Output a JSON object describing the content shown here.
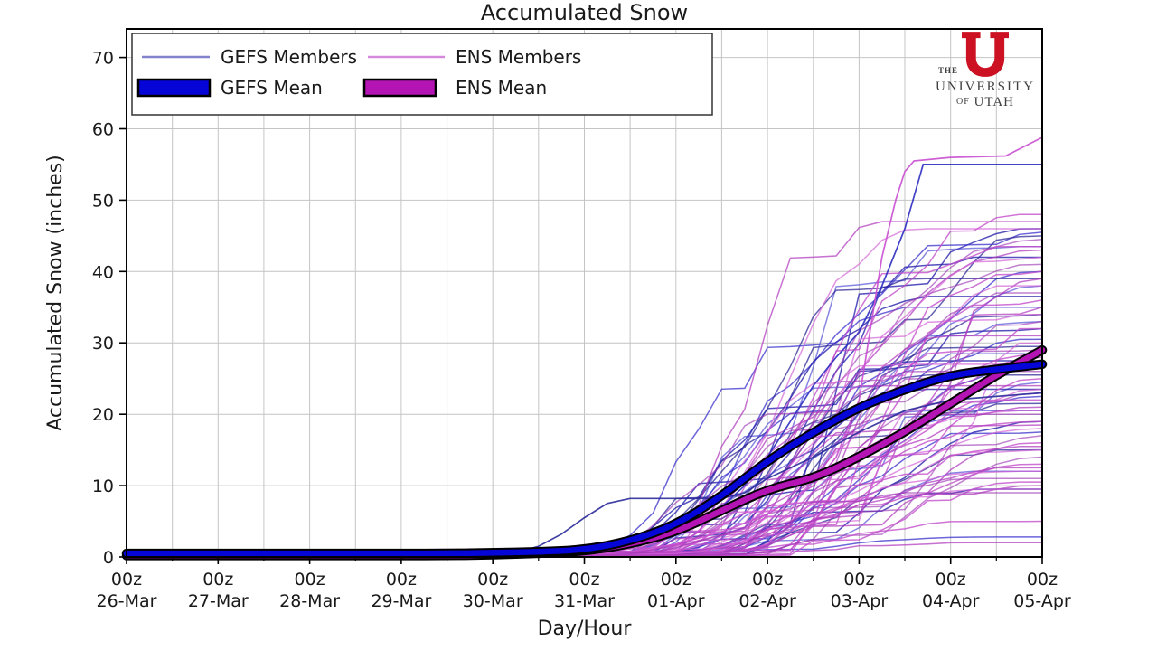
{
  "chart_data": {
    "type": "line",
    "title": "Accumulated Snow",
    "xlabel": "Day/Hour",
    "ylabel": "Accumulated Snow (inches)",
    "x_tick_hour": "00z",
    "x_tick_dates": [
      "26-Mar",
      "27-Mar",
      "28-Mar",
      "29-Mar",
      "30-Mar",
      "31-Mar",
      "01-Apr",
      "02-Apr",
      "03-Apr",
      "04-Apr",
      "05-Apr"
    ],
    "x_minor_interval_days": 0.5,
    "ylim": [
      0,
      74
    ],
    "yticks": [
      0,
      10,
      20,
      30,
      40,
      50,
      60,
      70
    ],
    "grid": true,
    "background": "#ffffff",
    "axes": {
      "spine_color": "#000000",
      "grid_color": "#c4c4c4",
      "tick_label_color": "#1a1a1a"
    },
    "legend": {
      "position": "upper left",
      "entries": [
        {
          "label": "GEFS Members",
          "type": "line",
          "color": "#8383cd"
        },
        {
          "label": "ENS Members",
          "type": "line",
          "color": "#d489dc"
        },
        {
          "label": "GEFS Mean",
          "type": "band",
          "color": "#0505d8",
          "edge": "#000000"
        },
        {
          "label": "ENS Mean",
          "type": "band",
          "color": "#b414b4",
          "edge": "#000000"
        }
      ]
    },
    "mean_step_days": 0.5,
    "series": [
      {
        "name": "GEFS Mean",
        "color": "#0505d8",
        "edge": "#000000",
        "values": [
          0.5,
          0.5,
          0.5,
          0.5,
          0.5,
          0.5,
          0.5,
          0.5,
          0.6,
          0.7,
          1.0,
          2.2,
          4.5,
          8.5,
          13.5,
          17.5,
          21.0,
          23.5,
          25.5,
          26.3,
          27.0
        ]
      },
      {
        "name": "ENS Mean",
        "color": "#b414b4",
        "edge": "#000000",
        "values": [
          0.2,
          0.2,
          0.2,
          0.2,
          0.2,
          0.2,
          0.2,
          0.2,
          0.3,
          0.5,
          0.8,
          1.8,
          3.5,
          6.5,
          9.5,
          11.0,
          14.0,
          17.5,
          21.5,
          25.5,
          29.0
        ]
      }
    ],
    "members": {
      "seed": 1337,
      "step_days": 0.25,
      "gefs": {
        "name": "GEFS Members",
        "palette": [
          "#2a24ae",
          "#3b32cc",
          "#241e92",
          "#4744d2"
        ],
        "opacity": 0.8,
        "onset_min": 19,
        "onset_spread": 7,
        "finals": [
          46,
          45.5,
          45,
          43.5,
          42,
          40,
          39,
          38,
          36.5,
          35,
          34,
          33,
          32,
          30.5,
          29.5,
          28.5,
          27.5,
          26.5,
          25.5,
          24.5,
          23.5,
          22.5,
          21.5,
          20.5,
          19,
          17.5,
          15,
          12,
          9.5,
          2.8
        ]
      },
      "ens": {
        "name": "ENS Members",
        "palette": [
          "#c24bca",
          "#b13bbf",
          "#d15fd5",
          "#9d36b5"
        ],
        "opacity": 0.78,
        "onset_min": 20,
        "onset_spread": 8,
        "finals": [
          48,
          47,
          46,
          44.5,
          43.5,
          43,
          42,
          41,
          40,
          39,
          38,
          37,
          36,
          35,
          34,
          33,
          32,
          31,
          30,
          29,
          28.5,
          28,
          27,
          26,
          25,
          24,
          23.5,
          23,
          22,
          21,
          20.5,
          20,
          19,
          18.5,
          18,
          17,
          16,
          15.5,
          15,
          14,
          13,
          12.5,
          12,
          11,
          10.5,
          10,
          9.5,
          9,
          5,
          2
        ]
      }
    },
    "featured_members": [
      {
        "group": "gefs",
        "color": "#2c2cc0",
        "points": [
          [
            0,
            0.5
          ],
          [
            4.5,
            0.5
          ],
          [
            5,
            0.8
          ],
          [
            5.5,
            1.6
          ],
          [
            6,
            3.5
          ],
          [
            6.5,
            7
          ],
          [
            6.75,
            10
          ],
          [
            7,
            14
          ],
          [
            7.25,
            19
          ],
          [
            7.5,
            24
          ],
          [
            7.75,
            28
          ],
          [
            8,
            31.5
          ],
          [
            8.25,
            38
          ],
          [
            8.5,
            46
          ],
          [
            8.7,
            55
          ],
          [
            10,
            55
          ]
        ]
      },
      {
        "group": "ens",
        "color": "#c94fd0",
        "points": [
          [
            0,
            0.3
          ],
          [
            5,
            0.3
          ],
          [
            5.5,
            0.8
          ],
          [
            6,
            1.8
          ],
          [
            6.5,
            3.5
          ],
          [
            7,
            6
          ],
          [
            7.5,
            10
          ],
          [
            7.75,
            14
          ],
          [
            8,
            22
          ],
          [
            8.1,
            30
          ],
          [
            8.25,
            42
          ],
          [
            8.4,
            50
          ],
          [
            8.5,
            54
          ],
          [
            8.6,
            55.5
          ],
          [
            9,
            56
          ],
          [
            9.6,
            56.2
          ],
          [
            10,
            58.8
          ]
        ]
      },
      {
        "group": "gefs",
        "color": "#2a2a9a",
        "points": [
          [
            0,
            0.6
          ],
          [
            4.25,
            0.6
          ],
          [
            4.5,
            1.5
          ],
          [
            4.75,
            3.2
          ],
          [
            5,
            5.5
          ],
          [
            5.25,
            7.5
          ],
          [
            5.5,
            8.2
          ],
          [
            6.5,
            8.2
          ],
          [
            6.75,
            9
          ],
          [
            7,
            11
          ],
          [
            7.5,
            14
          ],
          [
            8,
            17.5
          ],
          [
            8.5,
            20.5
          ],
          [
            9,
            22
          ],
          [
            9.5,
            22.5
          ],
          [
            10,
            23
          ]
        ]
      }
    ]
  },
  "logo": {
    "the": "THE",
    "university": "UNIVERSITY",
    "of": "OF",
    "utah": "UTAH",
    "u_color": "#cc1122",
    "text_color": "#3f3f3f"
  }
}
